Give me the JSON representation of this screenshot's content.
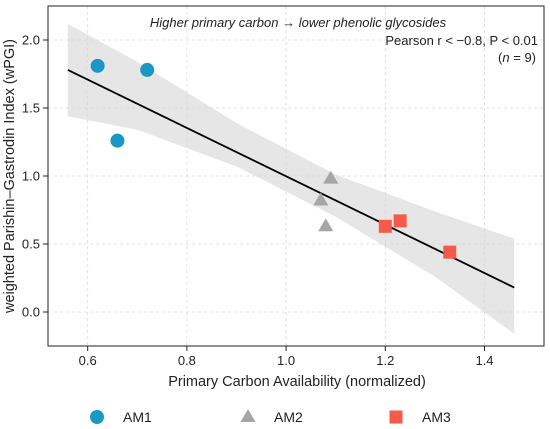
{
  "chart_data": {
    "type": "scatter",
    "xlabel": "Primary Carbon Availability (normalized)",
    "ylabel": "weighted Parishin–Gastrodin Index (wPGI)",
    "xlim": [
      0.52,
      1.52
    ],
    "ylim": [
      -0.25,
      2.25
    ],
    "xticks": [
      0.6,
      0.8,
      1.0,
      1.2,
      1.4
    ],
    "yticks": [
      0.0,
      0.5,
      1.0,
      1.5,
      2.0
    ],
    "xtick_labels": [
      "0.6",
      "0.8",
      "1.0",
      "1.2",
      "1.4"
    ],
    "ytick_labels": [
      "0.0",
      "0.5",
      "1.0",
      "1.5",
      "2.0"
    ],
    "grid": true,
    "legend_position": "bottom",
    "annotations": {
      "line1": "Higher primary carbon → lower phenolic glycosides",
      "line2": "Pearson r < −0.8, P < 0.01",
      "line3_open": "(",
      "line3_n": "n",
      "line3_close": " = 9)"
    },
    "series": [
      {
        "name": "AM1",
        "marker": "circle",
        "color": "#1a97c4",
        "points": [
          [
            0.62,
            1.81
          ],
          [
            0.72,
            1.78
          ],
          [
            0.66,
            1.26
          ]
        ]
      },
      {
        "name": "AM2",
        "marker": "triangle",
        "color": "#a6a6a6",
        "points": [
          [
            1.09,
            0.98
          ],
          [
            1.07,
            0.82
          ],
          [
            1.08,
            0.63
          ]
        ]
      },
      {
        "name": "AM3",
        "marker": "square",
        "color": "#f65a4a",
        "points": [
          [
            1.2,
            0.63
          ],
          [
            1.23,
            0.67
          ],
          [
            1.33,
            0.44
          ]
        ]
      }
    ],
    "fit": {
      "x": [
        0.56,
        1.46
      ],
      "y": [
        1.78,
        0.18
      ],
      "color": "#000000"
    },
    "confidence_band": {
      "color": "#d9d9d9",
      "x": [
        0.56,
        0.7,
        0.9,
        1.1,
        1.3,
        1.46
      ],
      "upper": [
        2.12,
        1.84,
        1.39,
        1.01,
        0.74,
        0.54
      ],
      "lower": [
        1.44,
        1.34,
        1.07,
        0.7,
        0.26,
        -0.16
      ]
    }
  }
}
